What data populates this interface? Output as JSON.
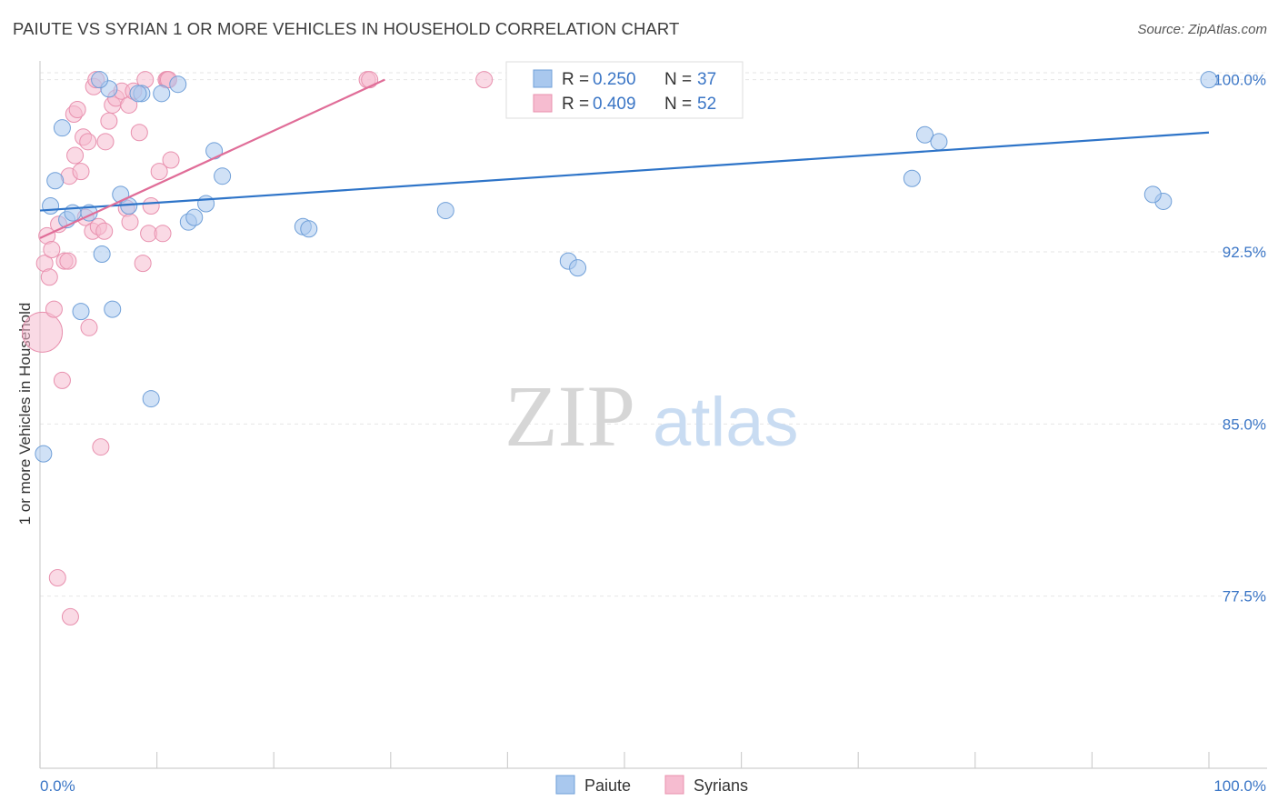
{
  "title": "PAIUTE VS SYRIAN 1 OR MORE VEHICLES IN HOUSEHOLD CORRELATION CHART",
  "source": "Source: ZipAtlas.com",
  "chart_data": {
    "type": "scatter",
    "ylabel": "1 or more Vehicles in Household",
    "xlim": [
      0,
      100
    ],
    "ylim": [
      70.0,
      100.7
    ],
    "x_tick_labels": [
      {
        "value": 0,
        "label": "0.0%"
      },
      {
        "value": 100,
        "label": "100.0%"
      }
    ],
    "y_ticks": [
      {
        "value": 100.0,
        "label": "100.0%"
      },
      {
        "value": 92.5,
        "label": "92.5%"
      },
      {
        "value": 85.0,
        "label": "85.0%"
      },
      {
        "value": 77.5,
        "label": "77.5%"
      }
    ],
    "grid": true,
    "legend_position": "top-center",
    "colors": {
      "paiute_fill": "#a9c8ee",
      "paiute_stroke": "#6f9fd8",
      "paiute_line": "#2e74c8",
      "syrian_fill": "#f6bcd0",
      "syrian_stroke": "#e890ae",
      "syrian_line": "#e06d98",
      "value_text": "#3b76c6"
    },
    "stats": [
      {
        "series": "Paiute",
        "r_label": "R = ",
        "r": "0.250",
        "n_label": "N = ",
        "n": "37"
      },
      {
        "series": "Syrians",
        "r_label": "R = ",
        "r": "0.409",
        "n_label": "N = ",
        "n": "52"
      }
    ],
    "series": [
      {
        "name": "Paiute",
        "trend": {
          "x0": 0,
          "y0": 94.3,
          "x1": 100,
          "y1": 97.7
        },
        "points": [
          [
            0.3,
            83.7
          ],
          [
            0.9,
            94.5
          ],
          [
            1.3,
            95.6
          ],
          [
            1.9,
            97.9
          ],
          [
            2.3,
            93.9
          ],
          [
            2.8,
            94.2
          ],
          [
            3.5,
            89.9
          ],
          [
            4.2,
            94.2
          ],
          [
            5.3,
            92.4
          ],
          [
            5.9,
            99.6
          ],
          [
            6.2,
            90.0
          ],
          [
            5.1,
            100.0
          ],
          [
            6.9,
            95.0
          ],
          [
            7.6,
            94.5
          ],
          [
            8.7,
            99.4
          ],
          [
            8.4,
            99.4
          ],
          [
            9.5,
            86.1
          ],
          [
            10.4,
            99.4
          ],
          [
            11.8,
            99.8
          ],
          [
            12.7,
            93.8
          ],
          [
            13.2,
            94.0
          ],
          [
            14.2,
            94.6
          ],
          [
            14.9,
            96.9
          ],
          [
            15.6,
            95.8
          ],
          [
            22.5,
            93.6
          ],
          [
            23.0,
            93.5
          ],
          [
            34.7,
            94.3
          ],
          [
            45.2,
            92.1
          ],
          [
            46.0,
            91.8
          ],
          [
            45.4,
            100.0
          ],
          [
            48.8,
            100.0
          ],
          [
            96.1,
            94.7
          ],
          [
            95.2,
            95.0
          ],
          [
            74.6,
            95.7
          ],
          [
            75.7,
            97.6
          ],
          [
            76.9,
            97.3
          ],
          [
            100.0,
            100.0
          ]
        ]
      },
      {
        "name": "Syrians",
        "trend": {
          "x0": 0,
          "y0": 93.1,
          "x1": 29.5,
          "y1": 100.0
        },
        "points": [
          [
            0.2,
            89.0
          ],
          [
            0.4,
            92.0
          ],
          [
            0.6,
            93.2
          ],
          [
            0.8,
            91.4
          ],
          [
            1.0,
            92.6
          ],
          [
            1.2,
            90.0
          ],
          [
            1.5,
            78.3
          ],
          [
            1.6,
            93.7
          ],
          [
            1.9,
            86.9
          ],
          [
            2.1,
            92.1
          ],
          [
            2.4,
            92.1
          ],
          [
            2.5,
            95.8
          ],
          [
            2.6,
            76.6
          ],
          [
            2.9,
            98.5
          ],
          [
            3.0,
            96.7
          ],
          [
            3.2,
            98.7
          ],
          [
            3.5,
            96.0
          ],
          [
            3.7,
            97.5
          ],
          [
            3.9,
            94.0
          ],
          [
            4.1,
            97.3
          ],
          [
            4.2,
            89.2
          ],
          [
            4.5,
            93.4
          ],
          [
            4.6,
            99.7
          ],
          [
            4.8,
            100.0
          ],
          [
            5.0,
            93.6
          ],
          [
            5.2,
            84.0
          ],
          [
            5.5,
            93.4
          ],
          [
            5.6,
            97.3
          ],
          [
            5.9,
            98.2
          ],
          [
            6.2,
            98.9
          ],
          [
            6.5,
            99.2
          ],
          [
            7.0,
            99.5
          ],
          [
            7.4,
            94.4
          ],
          [
            7.6,
            98.9
          ],
          [
            7.7,
            93.8
          ],
          [
            8.0,
            99.5
          ],
          [
            8.5,
            97.7
          ],
          [
            8.8,
            92.0
          ],
          [
            9.0,
            100.0
          ],
          [
            9.3,
            93.3
          ],
          [
            9.5,
            94.5
          ],
          [
            10.2,
            96.0
          ],
          [
            10.5,
            93.3
          ],
          [
            10.8,
            100.0
          ],
          [
            10.9,
            100.0
          ],
          [
            11.0,
            100.0
          ],
          [
            11.2,
            96.5
          ],
          [
            28.0,
            100.0
          ],
          [
            28.2,
            100.0
          ],
          [
            38.0,
            100.0
          ],
          [
            46.0,
            100.0
          ],
          [
            47.0,
            100.0
          ]
        ],
        "sizes_note": "",
        "big_point_index": 0
      }
    ]
  },
  "watermark": {
    "zip": "ZIP",
    "atlas": "atlas"
  }
}
